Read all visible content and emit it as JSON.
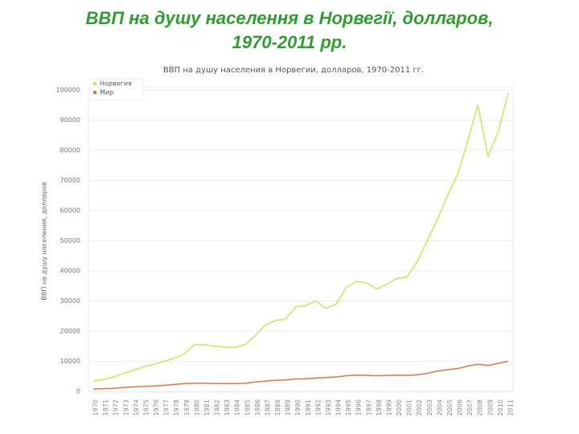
{
  "slide_title": [
    "ВВП на душу населення в Норвегії, долларов,",
    "1970-2011 рр."
  ],
  "chart_data": {
    "type": "line",
    "title": "ВВП на душу населения в Норвегии, долларов, 1970-2011 гг.",
    "y_label": "ВВП на душу населения, долларов",
    "categories": [
      "1970",
      "1971",
      "1972",
      "1973",
      "1974",
      "1975",
      "1976",
      "1977",
      "1978",
      "1979",
      "1980",
      "1981",
      "1982",
      "1983",
      "1984",
      "1985",
      "1986",
      "1987",
      "1988",
      "1989",
      "1990",
      "1991",
      "1992",
      "1993",
      "1994",
      "1995",
      "1996",
      "1997",
      "1998",
      "1999",
      "2000",
      "2001",
      "2002",
      "2003",
      "2004",
      "2005",
      "2006",
      "2007",
      "2008",
      "2009",
      "2010",
      "2011"
    ],
    "series": [
      {
        "name": "Норвегия",
        "color": "#d4e157",
        "values": [
          3500,
          3900,
          4800,
          6000,
          7000,
          8200,
          9000,
          10000,
          11000,
          12500,
          15500,
          15500,
          15000,
          14700,
          14600,
          15500,
          18500,
          22000,
          23500,
          24000,
          28000,
          28500,
          30000,
          27500,
          29000,
          34500,
          36500,
          36000,
          34000,
          35500,
          37500,
          38000,
          43000,
          50000,
          57000,
          65000,
          72000,
          83000,
          95000,
          78000,
          86000,
          99000
        ]
      },
      {
        "name": "Мир",
        "color": "#e8743b",
        "values": [
          800,
          900,
          1000,
          1300,
          1500,
          1700,
          1800,
          2000,
          2300,
          2600,
          2700,
          2700,
          2600,
          2600,
          2600,
          2700,
          3100,
          3400,
          3700,
          3800,
          4100,
          4200,
          4400,
          4600,
          4800,
          5200,
          5400,
          5300,
          5200,
          5300,
          5400,
          5300,
          5500,
          6000,
          6700,
          7200,
          7600,
          8400,
          9000,
          8600,
          9300,
          10000
        ]
      }
    ],
    "ylim": [
      0,
      100000
    ],
    "yticks": [
      0,
      10000,
      20000,
      30000,
      40000,
      50000,
      60000,
      70000,
      80000,
      90000,
      100000
    ],
    "grid": true,
    "legend": "top-left"
  }
}
